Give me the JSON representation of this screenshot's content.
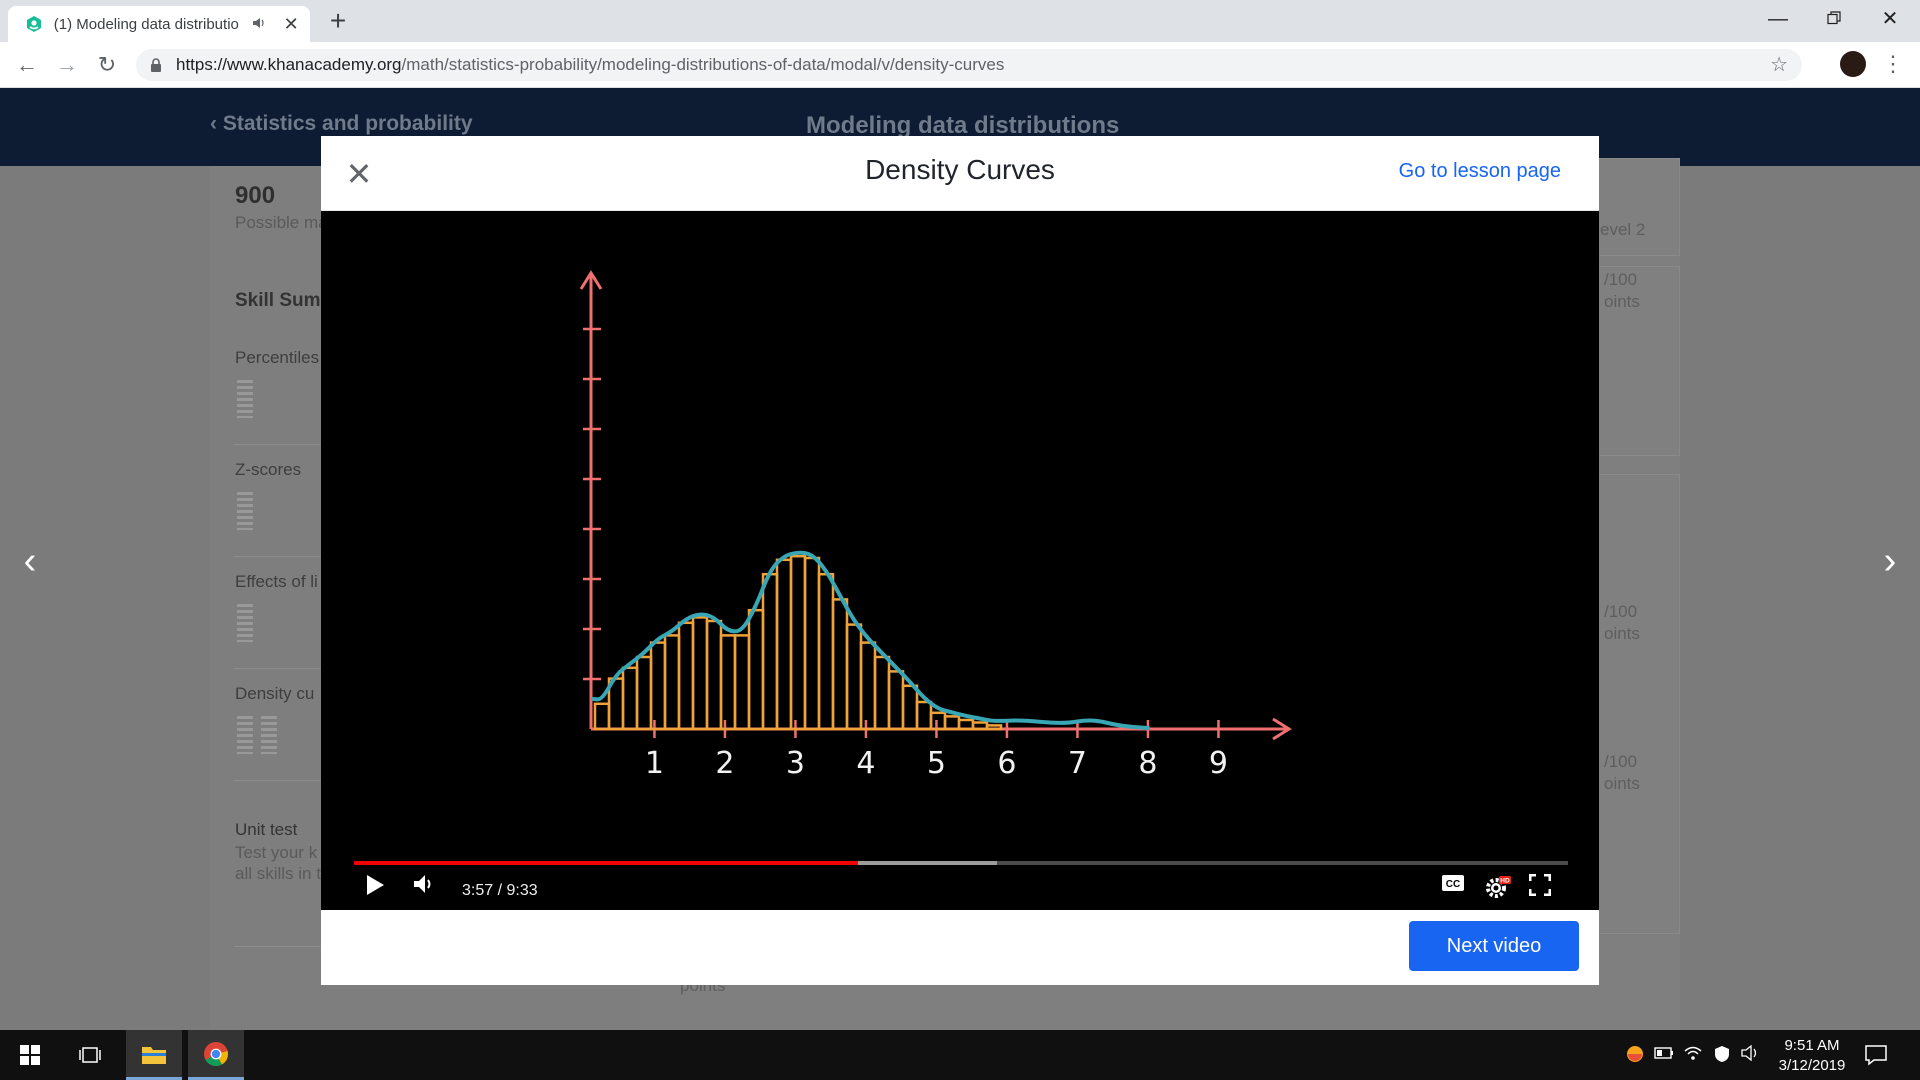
{
  "browser": {
    "tab_title": "(1) Modeling data distributio",
    "url_host": "https://www.khanacademy.org",
    "url_path": "/math/statistics-probability/modeling-distributions-of-data/modal/v/density-curves"
  },
  "page": {
    "breadcrumb": "Statistics and probability",
    "unit_title": "Modeling data distributions",
    "points": "900",
    "points_label": "Possible ma",
    "skill_summary": "Skill Summ",
    "skills": [
      "Percentiles",
      "Z-scores",
      "Effects of li",
      "Density cu"
    ],
    "unit_test_title": "Unit test",
    "unit_test_desc_1": "Test your k",
    "unit_test_desc_2": "all skills in t",
    "level_label": "evel 2",
    "right_cards": [
      {
        "score": "/100",
        "label": "oints"
      },
      {
        "score": "/100",
        "label": "oints"
      },
      {
        "score": "/100",
        "label": "oints"
      }
    ],
    "bottom_points": "points"
  },
  "modal": {
    "title": "Density Curves",
    "lesson_link": "Go to lesson page",
    "next_button": "Next video"
  },
  "video": {
    "current_time": "3:57",
    "duration": "9:33",
    "time_display": "3:57 / 9:33",
    "progress_fraction": 0.415,
    "buffered_fraction": 0.53,
    "axis_labels": [
      "1",
      "2",
      "3",
      "4",
      "5",
      "6",
      "7",
      "8",
      "9"
    ],
    "histogram_heights": [
      0.7,
      1.4,
      1.7,
      2.0,
      2.4,
      2.6,
      2.95,
      3.1,
      3.0,
      2.6,
      2.6,
      3.3,
      4.3,
      4.7,
      4.8,
      4.75,
      4.3,
      3.6,
      2.9,
      2.4,
      2.0,
      1.6,
      1.2,
      0.75,
      0.45,
      0.35,
      0.25,
      0.18,
      0.1
    ]
  },
  "taskbar": {
    "time": "9:51 AM",
    "date": "3/12/2019"
  }
}
